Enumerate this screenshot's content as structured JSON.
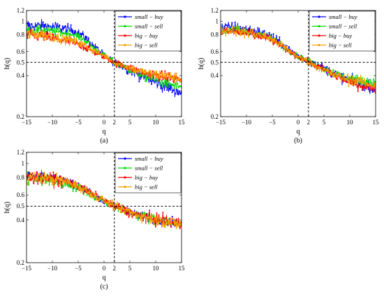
{
  "figure": {
    "panels": [
      "(a)",
      "(b)",
      "(c)"
    ]
  },
  "chart_data": [
    {
      "type": "line",
      "panel_label": "(a)",
      "xlabel": "q",
      "ylabel": "h(q)",
      "xlim": [
        -15,
        15
      ],
      "ylim": [
        0.2,
        1.2
      ],
      "y_scale": "log",
      "xticks": [
        -15,
        -10,
        -5,
        0,
        2,
        5,
        10,
        15
      ],
      "yticks": [
        0.2,
        0.4,
        0.5,
        0.6,
        0.8,
        1,
        1.2
      ],
      "reference_lines": {
        "x": 2,
        "y": 0.5,
        "style": "dashed"
      },
      "legend_position": "top-right",
      "series": [
        {
          "name": "small − buy",
          "color": "#0000ff",
          "noise": 0.05,
          "x": [
            -15,
            -12,
            -9,
            -6,
            -4,
            -2,
            0,
            2,
            4,
            6,
            9,
            12,
            15
          ],
          "values": [
            0.92,
            0.93,
            0.9,
            0.86,
            0.78,
            0.66,
            0.56,
            0.5,
            0.46,
            0.42,
            0.37,
            0.33,
            0.3
          ]
        },
        {
          "name": "small − sell",
          "color": "#00dd00",
          "noise": 0.04,
          "x": [
            -15,
            -12,
            -9,
            -6,
            -4,
            -2,
            0,
            2,
            4,
            6,
            9,
            12,
            15
          ],
          "values": [
            0.85,
            0.86,
            0.84,
            0.8,
            0.74,
            0.64,
            0.56,
            0.5,
            0.46,
            0.42,
            0.38,
            0.35,
            0.33
          ]
        },
        {
          "name": "big − buy",
          "color": "#ff0000",
          "noise": 0.045,
          "x": [
            -15,
            -12,
            -9,
            -6,
            -4,
            -2,
            0,
            2,
            4,
            6,
            9,
            12,
            15
          ],
          "values": [
            0.78,
            0.78,
            0.74,
            0.7,
            0.66,
            0.6,
            0.55,
            0.5,
            0.47,
            0.44,
            0.41,
            0.39,
            0.37
          ]
        },
        {
          "name": "big − sell",
          "color": "#f5a000",
          "noise": 0.045,
          "x": [
            -15,
            -12,
            -9,
            -6,
            -4,
            -2,
            0,
            2,
            4,
            6,
            9,
            12,
            15
          ],
          "values": [
            0.8,
            0.8,
            0.76,
            0.72,
            0.67,
            0.61,
            0.56,
            0.5,
            0.47,
            0.44,
            0.41,
            0.4,
            0.38
          ]
        }
      ]
    },
    {
      "type": "line",
      "panel_label": "(b)",
      "xlabel": "q",
      "ylabel": "h(q)",
      "xlim": [
        -15,
        15
      ],
      "ylim": [
        0.2,
        1.2
      ],
      "y_scale": "log",
      "xticks": [
        -15,
        -10,
        -5,
        0,
        2,
        5,
        10,
        15
      ],
      "yticks": [
        0.2,
        0.4,
        0.5,
        0.6,
        0.8,
        1,
        1.2
      ],
      "reference_lines": {
        "x": 2,
        "y": 0.5,
        "style": "dashed"
      },
      "legend_position": "top-right",
      "series": [
        {
          "name": "small − buy",
          "color": "#0000ff",
          "noise": 0.05,
          "x": [
            -15,
            -12,
            -9,
            -6,
            -4,
            -2,
            0,
            2,
            4,
            6,
            9,
            12,
            15
          ],
          "values": [
            0.9,
            0.9,
            0.86,
            0.8,
            0.72,
            0.63,
            0.56,
            0.51,
            0.47,
            0.43,
            0.38,
            0.35,
            0.33
          ]
        },
        {
          "name": "small − sell",
          "color": "#00dd00",
          "noise": 0.04,
          "x": [
            -15,
            -12,
            -9,
            -6,
            -4,
            -2,
            0,
            2,
            4,
            6,
            9,
            12,
            15
          ],
          "values": [
            0.86,
            0.86,
            0.82,
            0.77,
            0.7,
            0.62,
            0.55,
            0.51,
            0.47,
            0.43,
            0.39,
            0.37,
            0.35
          ]
        },
        {
          "name": "big − buy",
          "color": "#ff0000",
          "noise": 0.04,
          "x": [
            -15,
            -12,
            -9,
            -6,
            -4,
            -2,
            0,
            2,
            4,
            6,
            9,
            12,
            15
          ],
          "values": [
            0.84,
            0.84,
            0.8,
            0.75,
            0.69,
            0.61,
            0.55,
            0.5,
            0.46,
            0.42,
            0.37,
            0.34,
            0.32
          ]
        },
        {
          "name": "big − sell",
          "color": "#f5a000",
          "noise": 0.045,
          "x": [
            -15,
            -12,
            -9,
            -6,
            -4,
            -2,
            0,
            2,
            4,
            6,
            9,
            12,
            15
          ],
          "values": [
            0.86,
            0.86,
            0.82,
            0.77,
            0.7,
            0.62,
            0.55,
            0.5,
            0.46,
            0.42,
            0.38,
            0.36,
            0.34
          ]
        }
      ]
    },
    {
      "type": "line",
      "panel_label": "(c)",
      "xlabel": "q",
      "ylabel": "h(q)",
      "xlim": [
        -15,
        15
      ],
      "ylim": [
        0.2,
        1.2
      ],
      "y_scale": "log",
      "xticks": [
        -15,
        -10,
        -5,
        0,
        2,
        5,
        10,
        15
      ],
      "yticks": [
        0.2,
        0.4,
        0.5,
        0.6,
        0.8,
        1,
        1.2
      ],
      "reference_lines": {
        "x": 2,
        "y": 0.5,
        "style": "dashed"
      },
      "legend_position": "top-right",
      "series": [
        {
          "name": "small − buy",
          "color": "#0000ff",
          "noise": 0.04,
          "x": [
            -15,
            -12,
            -9,
            -6,
            -4,
            -2,
            0,
            2,
            4,
            6,
            9,
            12,
            15
          ],
          "values": [
            0.82,
            0.82,
            0.78,
            0.73,
            0.67,
            0.6,
            0.54,
            0.5,
            0.47,
            0.44,
            0.41,
            0.39,
            0.37
          ]
        },
        {
          "name": "small − sell",
          "color": "#00dd00",
          "noise": 0.05,
          "x": [
            -15,
            -12,
            -9,
            -6,
            -4,
            -2,
            0,
            2,
            4,
            6,
            9,
            12,
            15
          ],
          "values": [
            0.78,
            0.77,
            0.74,
            0.7,
            0.65,
            0.59,
            0.54,
            0.5,
            0.47,
            0.44,
            0.41,
            0.39,
            0.37
          ]
        },
        {
          "name": "big − buy",
          "color": "#ff0000",
          "noise": 0.05,
          "x": [
            -15,
            -12,
            -9,
            -6,
            -4,
            -2,
            0,
            2,
            4,
            6,
            9,
            12,
            15
          ],
          "values": [
            0.8,
            0.8,
            0.77,
            0.72,
            0.66,
            0.6,
            0.55,
            0.5,
            0.47,
            0.44,
            0.41,
            0.39,
            0.37
          ]
        },
        {
          "name": "big − sell",
          "color": "#f5a000",
          "noise": 0.05,
          "x": [
            -15,
            -12,
            -9,
            -6,
            -4,
            -2,
            0,
            2,
            4,
            6,
            9,
            12,
            15
          ],
          "values": [
            0.8,
            0.8,
            0.77,
            0.72,
            0.66,
            0.6,
            0.55,
            0.5,
            0.47,
            0.44,
            0.41,
            0.39,
            0.37
          ]
        }
      ]
    }
  ]
}
